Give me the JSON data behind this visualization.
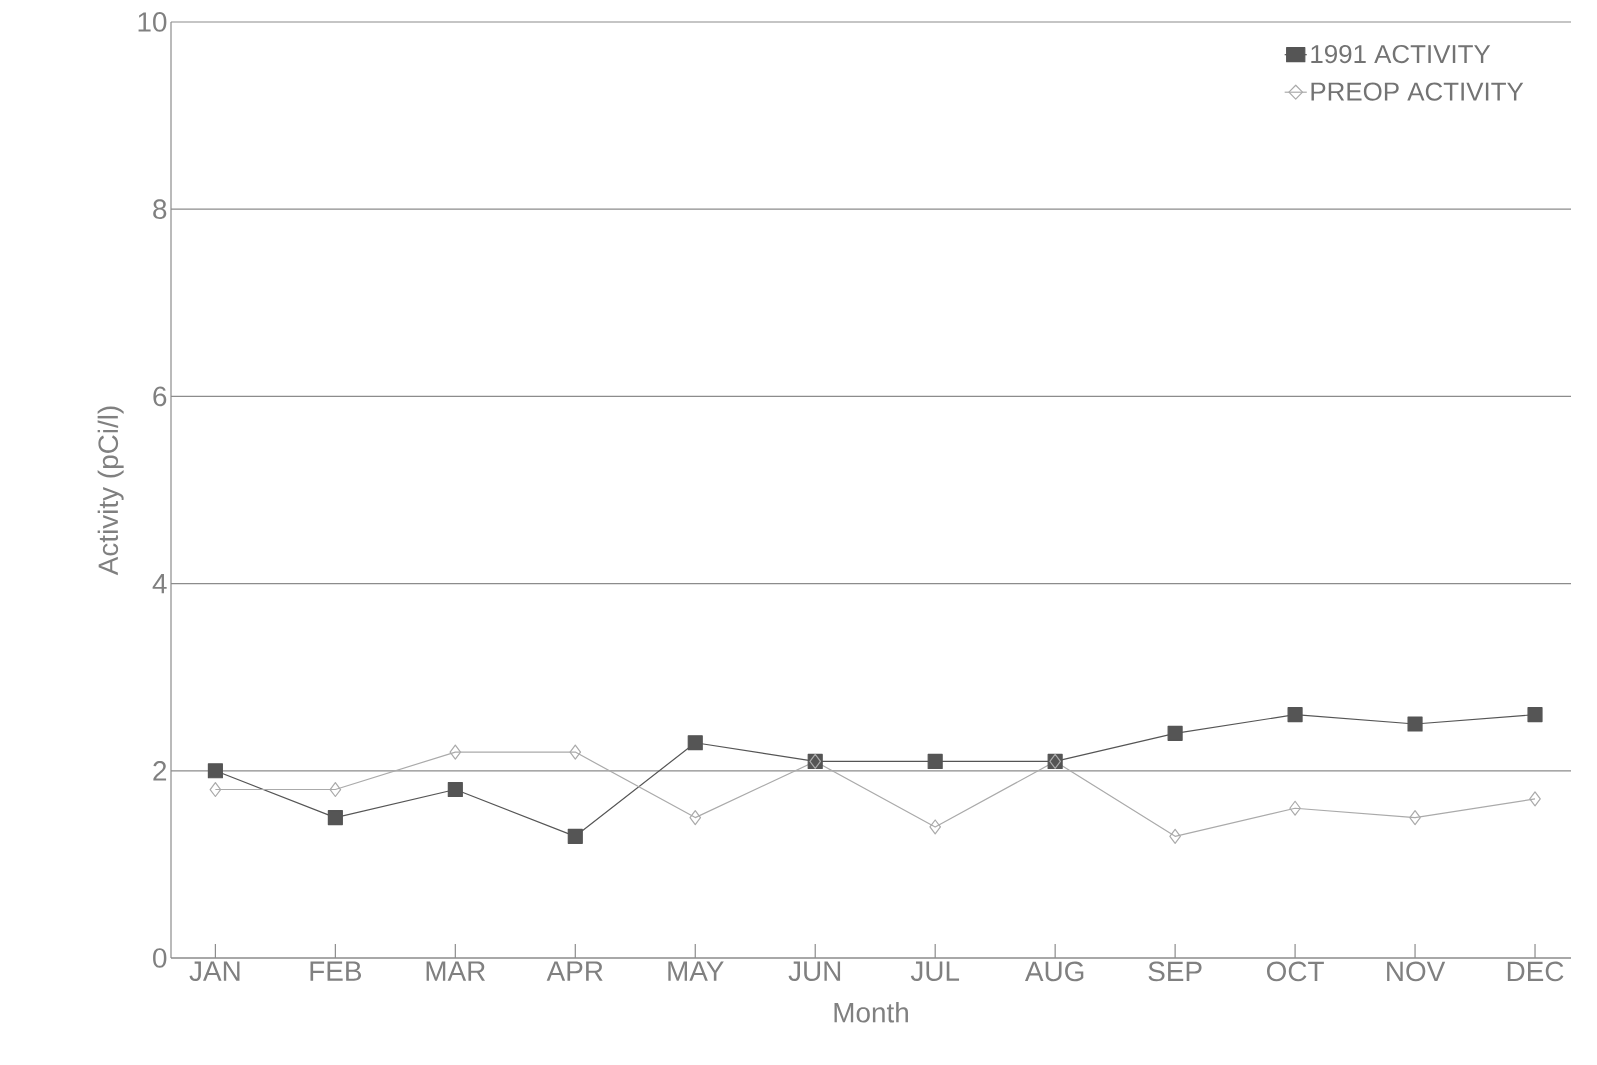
{
  "chart_data": {
    "type": "line",
    "xlabel": "Month",
    "ylabel": "Activity (pCi/l)",
    "categories": [
      "JAN",
      "FEB",
      "MAR",
      "APR",
      "MAY",
      "JUN",
      "JUL",
      "AUG",
      "SEP",
      "OCT",
      "NOV",
      "DEC"
    ],
    "series": [
      {
        "name": "1991 ACTIVITY",
        "color": "#555555",
        "marker": "square",
        "values": [
          2.0,
          1.5,
          1.8,
          1.3,
          2.3,
          2.1,
          2.1,
          2.1,
          2.4,
          2.6,
          2.5,
          2.6
        ]
      },
      {
        "name": "PREOP ACTIVITY",
        "color": "#aaaaaa",
        "marker": "diamond",
        "values": [
          1.8,
          1.8,
          2.2,
          2.2,
          1.5,
          2.1,
          1.4,
          2.1,
          1.3,
          1.6,
          1.5,
          1.7
        ]
      }
    ],
    "ylim": [
      0,
      10
    ],
    "yticks": [
      0,
      2,
      4,
      6,
      8,
      10
    ],
    "grid": "y",
    "legend": "top right"
  }
}
